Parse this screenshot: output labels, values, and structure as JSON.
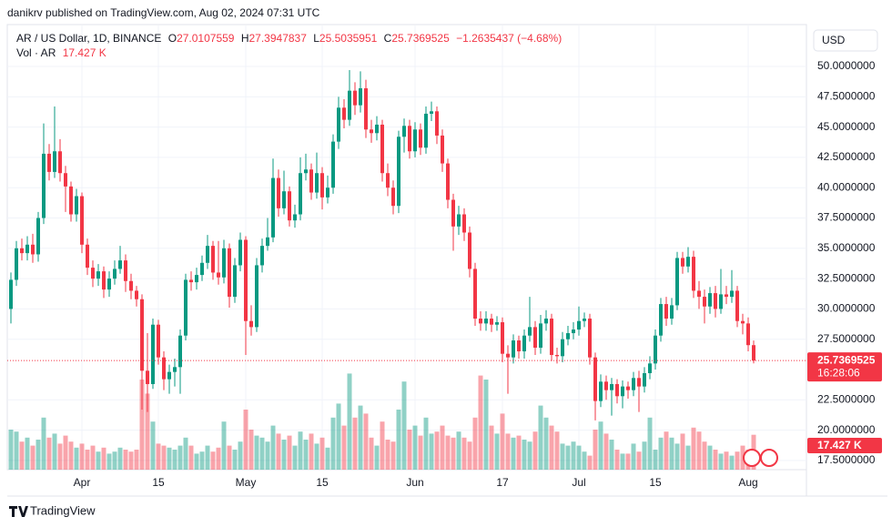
{
  "chart_data": {
    "type": "candlestick",
    "published": "danikrv published on TradingView.com, Aug 02, 2024 07:31 UTC",
    "title": "AR / US Dollar, 1D, BINANCE",
    "ohlc_labels": [
      "O",
      "H",
      "L",
      "C"
    ],
    "change": "−1.2635437 (−4.68%)",
    "volume_label": "Vol · AR",
    "volume_last_label": "17.427 K",
    "currency": "USD",
    "timer": "16:28:06",
    "brand": "TradingView",
    "colors": {
      "up": "#089981",
      "down": "#f23645"
    },
    "grid": true,
    "x": [
      "2024-03-19",
      "2024-03-20",
      "2024-03-21",
      "2024-03-22",
      "2024-03-23",
      "2024-03-24",
      "2024-03-25",
      "2024-03-26",
      "2024-03-27",
      "2024-03-28",
      "2024-03-29",
      "2024-03-30",
      "2024-03-31",
      "2024-04-01",
      "2024-04-02",
      "2024-04-03",
      "2024-04-04",
      "2024-04-05",
      "2024-04-06",
      "2024-04-07",
      "2024-04-08",
      "2024-04-09",
      "2024-04-10",
      "2024-04-11",
      "2024-04-12",
      "2024-04-13",
      "2024-04-14",
      "2024-04-15",
      "2024-04-16",
      "2024-04-17",
      "2024-04-18",
      "2024-04-19",
      "2024-04-20",
      "2024-04-21",
      "2024-04-22",
      "2024-04-23",
      "2024-04-24",
      "2024-04-25",
      "2024-04-26",
      "2024-04-27",
      "2024-04-28",
      "2024-04-29",
      "2024-04-30",
      "2024-05-01",
      "2024-05-02",
      "2024-05-03",
      "2024-05-04",
      "2024-05-05",
      "2024-05-06",
      "2024-05-07",
      "2024-05-08",
      "2024-05-09",
      "2024-05-10",
      "2024-05-11",
      "2024-05-12",
      "2024-05-13",
      "2024-05-14",
      "2024-05-15",
      "2024-05-16",
      "2024-05-17",
      "2024-05-18",
      "2024-05-19",
      "2024-05-20",
      "2024-05-21",
      "2024-05-22",
      "2024-05-23",
      "2024-05-24",
      "2024-05-25",
      "2024-05-26",
      "2024-05-27",
      "2024-05-28",
      "2024-05-29",
      "2024-05-30",
      "2024-05-31",
      "2024-06-01",
      "2024-06-02",
      "2024-06-03",
      "2024-06-04",
      "2024-06-05",
      "2024-06-06",
      "2024-06-07",
      "2024-06-08",
      "2024-06-09",
      "2024-06-10",
      "2024-06-11",
      "2024-06-12",
      "2024-06-13",
      "2024-06-14",
      "2024-06-15",
      "2024-06-16",
      "2024-06-17",
      "2024-06-18",
      "2024-06-19",
      "2024-06-20",
      "2024-06-21",
      "2024-06-22",
      "2024-06-23",
      "2024-06-24",
      "2024-06-25",
      "2024-06-26",
      "2024-06-27",
      "2024-06-28",
      "2024-06-29",
      "2024-06-30",
      "2024-07-01",
      "2024-07-02",
      "2024-07-03",
      "2024-07-04",
      "2024-07-05",
      "2024-07-06",
      "2024-07-07",
      "2024-07-08",
      "2024-07-09",
      "2024-07-10",
      "2024-07-11",
      "2024-07-12",
      "2024-07-13",
      "2024-07-14",
      "2024-07-15",
      "2024-07-16",
      "2024-07-17",
      "2024-07-18",
      "2024-07-19",
      "2024-07-20",
      "2024-07-21",
      "2024-07-22",
      "2024-07-23",
      "2024-07-24",
      "2024-07-25",
      "2024-07-26",
      "2024-07-27",
      "2024-07-28",
      "2024-07-29",
      "2024-07-30",
      "2024-07-31",
      "2024-08-01",
      "2024-08-02"
    ],
    "open": [
      30.0,
      32.4,
      35.0,
      34.6,
      35.3,
      34.5,
      37.5,
      42.8,
      41.3,
      43.0,
      41.2,
      40.1,
      37.8,
      39.3,
      35.3,
      33.4,
      32.5,
      33.1,
      31.6,
      32.5,
      33.3,
      34.0,
      32.3,
      31.5,
      30.8,
      24.9,
      23.8,
      28.7,
      26.0,
      24.2,
      24.8,
      25.2,
      27.8,
      32.4,
      32.2,
      32.8,
      33.8,
      35.2,
      33.0,
      32.6,
      35.0,
      31.0,
      33.6,
      35.7,
      29.0,
      28.5,
      33.6,
      35.2,
      35.9,
      40.8,
      38.3,
      39.7,
      37.3,
      37.8,
      41.2,
      41.5,
      39.6,
      41.2,
      39.2,
      40.0,
      43.8,
      46.6,
      45.6,
      48.0,
      46.8,
      48.2,
      44.8,
      44.5,
      45.2,
      41.2,
      40.0,
      38.5,
      44.2,
      45.1,
      43.0,
      44.8,
      43.3,
      46.1,
      46.3,
      44.3,
      42.0,
      39.0,
      36.8,
      37.8,
      36.3,
      33.3,
      29.2,
      28.8,
      29.2,
      28.7,
      28.9,
      26.3,
      26.0,
      27.4,
      26.5,
      27.8,
      28.5,
      26.8,
      28.8,
      29.2,
      26.2,
      26.1,
      27.5,
      28.0,
      28.3,
      29.0,
      29.2,
      26.0,
      22.4,
      24.0,
      23.3,
      23.8,
      22.8,
      23.6,
      23.3,
      24.3,
      23.6,
      24.7,
      25.5,
      27.8,
      30.4,
      29.2,
      30.3,
      34.2,
      33.5,
      34.3,
      31.5,
      31.0,
      30.2,
      31.3,
      30.0,
      31.2,
      31.0,
      31.5,
      29.0,
      28.8,
      27.0107559
    ],
    "high": [
      33.0,
      35.6,
      35.8,
      36.0,
      36.2,
      38.0,
      45.3,
      43.6,
      46.7,
      44.0,
      41.8,
      40.5,
      39.9,
      39.6,
      35.8,
      34.0,
      33.7,
      33.5,
      33.1,
      34.0,
      35.2,
      34.5,
      32.9,
      31.9,
      31.2,
      28.0,
      29.2,
      29.1,
      26.5,
      25.4,
      25.9,
      28.3,
      32.9,
      33.1,
      33.4,
      34.4,
      36.1,
      35.6,
      35.6,
      35.7,
      35.4,
      34.2,
      36.3,
      36.0,
      30.3,
      34.2,
      35.8,
      37.5,
      42.4,
      41.5,
      41.4,
      40.1,
      38.6,
      42.5,
      42.8,
      42.0,
      42.9,
      41.7,
      41.0,
      44.4,
      47.5,
      47.3,
      49.7,
      48.7,
      49.6,
      48.9,
      45.6,
      45.9,
      45.6,
      42.0,
      40.6,
      44.7,
      45.7,
      45.6,
      45.4,
      45.3,
      46.7,
      47.1,
      46.7,
      44.8,
      42.4,
      39.5,
      38.5,
      38.3,
      36.8,
      33.8,
      29.8,
      29.8,
      29.6,
      29.4,
      29.3,
      27.0,
      27.9,
      27.8,
      28.3,
      31.0,
      29.0,
      29.5,
      29.9,
      29.6,
      26.8,
      28.1,
      28.6,
      28.9,
      30.2,
      29.7,
      29.6,
      26.4,
      24.6,
      24.5,
      24.3,
      24.2,
      24.1,
      24.0,
      24.8,
      24.9,
      25.2,
      26.1,
      28.3,
      30.9,
      31.0,
      30.9,
      34.7,
      34.7,
      35.1,
      34.8,
      32.3,
      31.6,
      31.8,
      31.9,
      33.3,
      31.9,
      33.2,
      31.9,
      29.6,
      29.3,
      27.3947837
    ],
    "low": [
      28.8,
      31.9,
      34.0,
      34.0,
      33.8,
      33.9,
      37.0,
      40.6,
      40.8,
      40.5,
      38.0,
      37.2,
      37.2,
      34.6,
      32.8,
      31.8,
      31.9,
      30.9,
      31.0,
      32.0,
      32.9,
      31.4,
      30.8,
      30.2,
      21.7,
      21.5,
      23.4,
      25.4,
      23.3,
      23.0,
      23.6,
      23.0,
      27.4,
      31.5,
      31.6,
      32.3,
      33.3,
      32.4,
      32.0,
      32.1,
      30.1,
      30.5,
      33.1,
      26.2,
      27.8,
      28.1,
      33.0,
      34.8,
      35.5,
      37.6,
      37.8,
      36.8,
      36.7,
      37.3,
      40.6,
      39.0,
      39.1,
      38.2,
      38.7,
      39.5,
      43.2,
      44.9,
      45.1,
      46.0,
      46.2,
      44.1,
      43.7,
      43.9,
      40.5,
      39.3,
      37.8,
      37.9,
      42.9,
      42.4,
      42.5,
      42.7,
      42.8,
      45.5,
      43.6,
      41.3,
      38.3,
      34.8,
      36.1,
      35.6,
      32.6,
      28.6,
      28.2,
      28.2,
      28.1,
      28.2,
      25.6,
      23.0,
      25.5,
      25.9,
      25.9,
      27.3,
      26.2,
      26.3,
      28.2,
      25.7,
      25.5,
      25.6,
      27.0,
      27.5,
      27.8,
      28.5,
      25.4,
      20.8,
      21.9,
      22.5,
      21.2,
      22.2,
      21.8,
      22.6,
      22.8,
      21.5,
      23.1,
      24.2,
      25.0,
      27.3,
      28.6,
      28.7,
      29.9,
      32.9,
      33.0,
      30.9,
      30.0,
      28.8,
      29.6,
      29.3,
      29.6,
      30.4,
      30.5,
      28.5,
      27.9,
      26.5,
      25.5035951
    ],
    "close": [
      32.4,
      35.0,
      34.6,
      35.3,
      34.5,
      37.5,
      42.8,
      41.3,
      43.0,
      41.2,
      40.1,
      37.8,
      39.3,
      35.3,
      33.4,
      32.5,
      33.1,
      31.6,
      32.5,
      33.3,
      34.0,
      32.3,
      31.5,
      30.8,
      24.9,
      23.8,
      28.7,
      26.0,
      24.2,
      24.8,
      25.2,
      27.8,
      32.4,
      32.2,
      32.8,
      33.8,
      35.2,
      33.0,
      32.6,
      35.0,
      31.0,
      33.6,
      35.7,
      29.0,
      28.5,
      33.6,
      35.2,
      35.9,
      40.8,
      38.3,
      39.7,
      37.3,
      37.8,
      41.2,
      41.5,
      39.6,
      41.2,
      39.2,
      40.0,
      43.8,
      46.6,
      45.6,
      48.0,
      46.8,
      48.2,
      44.8,
      44.5,
      45.2,
      41.2,
      40.0,
      38.5,
      44.2,
      45.1,
      43.0,
      44.8,
      43.3,
      46.1,
      46.3,
      44.3,
      42.0,
      39.0,
      36.8,
      37.8,
      36.3,
      33.3,
      29.2,
      28.8,
      29.2,
      28.7,
      28.9,
      26.3,
      26.0,
      27.4,
      26.5,
      27.8,
      28.5,
      26.8,
      28.8,
      29.2,
      26.2,
      26.1,
      27.5,
      28.0,
      28.3,
      29.0,
      29.2,
      26.0,
      22.4,
      24.0,
      23.3,
      23.8,
      22.8,
      23.6,
      23.3,
      24.3,
      23.6,
      24.7,
      25.5,
      27.8,
      30.4,
      29.2,
      30.3,
      34.2,
      33.5,
      34.3,
      31.5,
      31.0,
      30.2,
      31.3,
      30.0,
      31.2,
      31.0,
      31.5,
      29.0,
      28.8,
      27.0107559,
      25.7369525
    ],
    "volume": [
      20000,
      19000,
      14000,
      16000,
      12000,
      15000,
      26000,
      16000,
      18000,
      13000,
      17000,
      14000,
      11000,
      13000,
      10000,
      12000,
      9000,
      11000,
      8000,
      9000,
      11000,
      10000,
      9000,
      10000,
      45000,
      38000,
      24000,
      13000,
      12000,
      11000,
      10000,
      12000,
      16000,
      12000,
      8000,
      9000,
      12000,
      9000,
      11000,
      24000,
      12000,
      10000,
      14000,
      30000,
      20000,
      17000,
      16000,
      14000,
      22000,
      18000,
      15000,
      17000,
      12000,
      19000,
      15000,
      18000,
      13000,
      16000,
      11000,
      26000,
      33000,
      22000,
      48000,
      26000,
      32000,
      28000,
      16000,
      12000,
      24000,
      15000,
      14000,
      30000,
      44000,
      20000,
      22000,
      17000,
      26000,
      18000,
      19000,
      22000,
      17000,
      16000,
      19000,
      16000,
      14000,
      26000,
      47000,
      45000,
      22000,
      18000,
      28000,
      18000,
      16000,
      17000,
      15000,
      14000,
      19000,
      32000,
      26000,
      22000,
      19000,
      13000,
      12000,
      14000,
      12000,
      9000,
      7000,
      20000,
      24000,
      18000,
      15000,
      10000,
      8000,
      8000,
      13000,
      9000,
      14000,
      26000,
      10000,
      16000,
      19000,
      16000,
      13000,
      18000,
      12000,
      21000,
      19000,
      14000,
      12000,
      10000,
      8000,
      9000,
      7000,
      9000,
      12000,
      10000,
      17427
    ],
    "ylim": [
      16.74,
      53.38
    ],
    "yticks": [
      {
        "value": 50,
        "label": "50.0000000"
      },
      {
        "value": 47.5,
        "label": "47.5000000"
      },
      {
        "value": 45,
        "label": "45.0000000"
      },
      {
        "value": 42.5,
        "label": "42.5000000"
      },
      {
        "value": 40,
        "label": "40.0000000"
      },
      {
        "value": 37.5,
        "label": "37.5000000"
      },
      {
        "value": 35,
        "label": "35.0000000"
      },
      {
        "value": 32.5,
        "label": "32.5000000"
      },
      {
        "value": 30,
        "label": "30.0000000"
      },
      {
        "value": 27.5,
        "label": "27.5000000"
      },
      {
        "value": 22.5,
        "label": "22.5000000"
      },
      {
        "value": 20,
        "label": "20.0000000"
      },
      {
        "value": 17.5,
        "label": "17.5000000"
      }
    ],
    "xticks": [
      {
        "value": "2024-04-01",
        "label": "Apr"
      },
      {
        "value": "2024-04-15",
        "label": "15"
      },
      {
        "value": "2024-05-01",
        "label": "May"
      },
      {
        "value": "2024-05-15",
        "label": "15"
      },
      {
        "value": "2024-06-01",
        "label": "Jun"
      },
      {
        "value": "2024-06-17",
        "label": "17"
      },
      {
        "value": "2024-07-01",
        "label": "Jul"
      },
      {
        "value": "2024-07-15",
        "label": "15"
      },
      {
        "value": "2024-08-01",
        "label": "Aug"
      }
    ]
  }
}
